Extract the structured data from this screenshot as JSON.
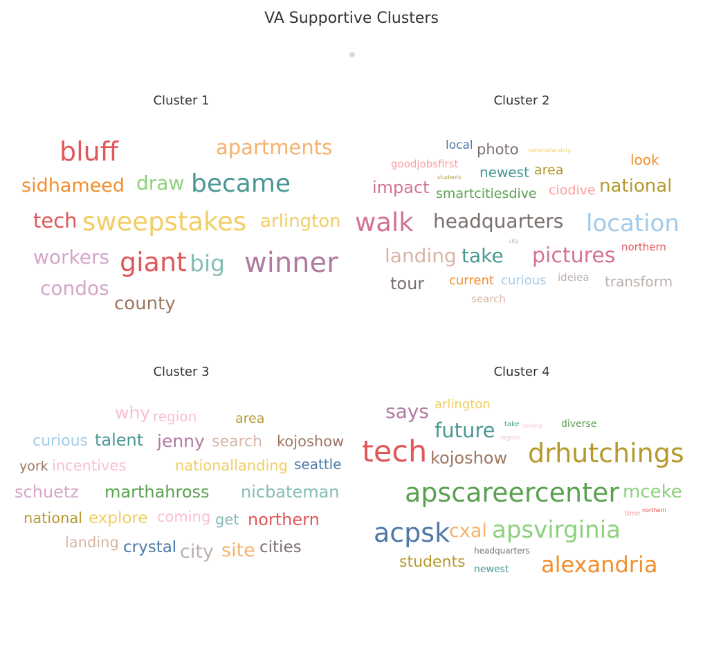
{
  "title": "VA Supportive Clusters",
  "clusters": [
    {
      "name": "Cluster 1",
      "words": [
        {
          "text": "bluff",
          "color": "#e15759"
        },
        {
          "text": "apartments",
          "color": "#f6b26b"
        },
        {
          "text": "sidhameed",
          "color": "#f28e2b"
        },
        {
          "text": "draw",
          "color": "#8cd17d"
        },
        {
          "text": "became",
          "color": "#499894"
        },
        {
          "text": "tech",
          "color": "#e15759"
        },
        {
          "text": "sweepstakes",
          "color": "#f1ce63"
        },
        {
          "text": "arlington",
          "color": "#f1ce63"
        },
        {
          "text": "workers",
          "color": "#d4a6c8"
        },
        {
          "text": "giant",
          "color": "#e15759"
        },
        {
          "text": "big",
          "color": "#86bcb6"
        },
        {
          "text": "winner",
          "color": "#b07aa1"
        },
        {
          "text": "condos",
          "color": "#d4a6c8"
        },
        {
          "text": "county",
          "color": "#9d7660"
        }
      ]
    },
    {
      "name": "Cluster 2",
      "words": [
        {
          "text": "local",
          "color": "#4e79a7"
        },
        {
          "text": "photo",
          "color": "#79706e"
        },
        {
          "text": "nationallanding",
          "color": "#f1ce63"
        },
        {
          "text": "look",
          "color": "#f28e2b"
        },
        {
          "text": "goodjobsfirst",
          "color": "#ff9d9a"
        },
        {
          "text": "newest",
          "color": "#499894"
        },
        {
          "text": "area",
          "color": "#b6992d"
        },
        {
          "text": "students",
          "color": "#b6992d"
        },
        {
          "text": "impact",
          "color": "#d37295"
        },
        {
          "text": "smartcitiesdive",
          "color": "#59a14f"
        },
        {
          "text": "ciodive",
          "color": "#ff9d9a"
        },
        {
          "text": "national",
          "color": "#b6992d"
        },
        {
          "text": "walk",
          "color": "#d37295"
        },
        {
          "text": "headquarters",
          "color": "#79706e"
        },
        {
          "text": "location",
          "color": "#a0cbe8"
        },
        {
          "text": "city",
          "color": "#bab0ac"
        },
        {
          "text": "landing",
          "color": "#d7b5a6"
        },
        {
          "text": "take",
          "color": "#499894"
        },
        {
          "text": "pictures",
          "color": "#d37295"
        },
        {
          "text": "northern",
          "color": "#e15759"
        },
        {
          "text": "tour",
          "color": "#79706e"
        },
        {
          "text": "current",
          "color": "#f28e2b"
        },
        {
          "text": "curious",
          "color": "#a0cbe8"
        },
        {
          "text": "ideiea",
          "color": "#bab0ac"
        },
        {
          "text": "transform",
          "color": "#bab0ac"
        },
        {
          "text": "search",
          "color": "#d7b5a6"
        }
      ]
    },
    {
      "name": "Cluster 3",
      "words": [
        {
          "text": "why",
          "color": "#fabfd2"
        },
        {
          "text": "region",
          "color": "#fabfd2"
        },
        {
          "text": "area",
          "color": "#b6992d"
        },
        {
          "text": "curious",
          "color": "#a0cbe8"
        },
        {
          "text": "talent",
          "color": "#499894"
        },
        {
          "text": "jenny",
          "color": "#b07aa1"
        },
        {
          "text": "search",
          "color": "#d7b5a6"
        },
        {
          "text": "kojoshow",
          "color": "#9d7660"
        },
        {
          "text": "york",
          "color": "#9d7660"
        },
        {
          "text": "incentives",
          "color": "#fabfd2"
        },
        {
          "text": "nationallanding",
          "color": "#f1ce63"
        },
        {
          "text": "seattle",
          "color": "#4e79a7"
        },
        {
          "text": "schuetz",
          "color": "#d4a6c8"
        },
        {
          "text": "marthahross",
          "color": "#59a14f"
        },
        {
          "text": "nicbateman",
          "color": "#86bcb6"
        },
        {
          "text": "national",
          "color": "#b6992d"
        },
        {
          "text": "explore",
          "color": "#f1ce63"
        },
        {
          "text": "coming",
          "color": "#fabfd2"
        },
        {
          "text": "get",
          "color": "#86bcb6"
        },
        {
          "text": "northern",
          "color": "#e15759"
        },
        {
          "text": "landing",
          "color": "#d7b5a6"
        },
        {
          "text": "crystal",
          "color": "#4e79a7"
        },
        {
          "text": "city",
          "color": "#bab0ac"
        },
        {
          "text": "site",
          "color": "#f6b26b"
        },
        {
          "text": "cities",
          "color": "#79706e"
        }
      ]
    },
    {
      "name": "Cluster 4",
      "words": [
        {
          "text": "says",
          "color": "#b07aa1"
        },
        {
          "text": "arlington",
          "color": "#f1ce63"
        },
        {
          "text": "future",
          "color": "#499894"
        },
        {
          "text": "take",
          "color": "#499894"
        },
        {
          "text": "coming",
          "color": "#fabfd2"
        },
        {
          "text": "diverse",
          "color": "#59a14f"
        },
        {
          "text": "region",
          "color": "#fabfd2"
        },
        {
          "text": "tech",
          "color": "#e15759"
        },
        {
          "text": "kojoshow",
          "color": "#9d7660"
        },
        {
          "text": "drhutchings",
          "color": "#b6992d"
        },
        {
          "text": "apscareercenter",
          "color": "#59a14f"
        },
        {
          "text": "mceke",
          "color": "#8cd17d"
        },
        {
          "text": "time",
          "color": "#ff9d9a"
        },
        {
          "text": "northern",
          "color": "#e15759"
        },
        {
          "text": "acpsk",
          "color": "#4e79a7"
        },
        {
          "text": "cxal",
          "color": "#f6b26b"
        },
        {
          "text": "apsvirginia",
          "color": "#8cd17d"
        },
        {
          "text": "students",
          "color": "#b6992d"
        },
        {
          "text": "headquarters",
          "color": "#79706e"
        },
        {
          "text": "newest",
          "color": "#499894"
        },
        {
          "text": "alexandria",
          "color": "#f28e2b"
        }
      ]
    }
  ]
}
